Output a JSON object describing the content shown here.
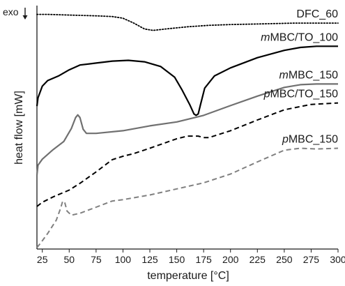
{
  "chart_data": {
    "type": "line",
    "title": "",
    "xlabel": "temperature [°C]",
    "ylabel": "heat flow [mW]",
    "direction_label": "exo",
    "direction_arrow": "down",
    "xlim": [
      20,
      300
    ],
    "xticks": [
      25,
      50,
      75,
      100,
      125,
      150,
      175,
      200,
      225,
      250,
      275,
      300
    ],
    "ylim": [
      0,
      100
    ],
    "y_axis_ticks": false,
    "grid": false,
    "legend": "labels next to curves",
    "series": [
      {
        "name": "DFC_60",
        "color": "#000000",
        "style": "dotted",
        "x": [
          20,
          30,
          50,
          75,
          90,
          100,
          110,
          120,
          128,
          140,
          160,
          180,
          200,
          230,
          260,
          300
        ],
        "y": [
          96.4,
          96.4,
          96.1,
          95.8,
          95.5,
          94.8,
          92.8,
          90.4,
          89.8,
          90.4,
          91.3,
          91.9,
          92.2,
          92.5,
          92.8,
          92.8
        ]
      },
      {
        "name": "mMBC/TO_100",
        "prefix": "m",
        "rest": "MBC/TO_100",
        "color": "#000000",
        "style": "solid",
        "x": [
          20,
          21,
          25,
          30,
          40,
          50,
          60,
          75,
          90,
          105,
          120,
          135,
          148,
          155,
          162,
          166,
          168,
          170,
          172,
          176,
          185,
          200,
          225,
          250,
          265,
          280,
          300
        ],
        "y": [
          58.7,
          62.1,
          66.9,
          69.2,
          71.1,
          73.6,
          75.6,
          76.4,
          77.2,
          77.5,
          76.9,
          75.0,
          70.6,
          65.3,
          59.4,
          55.5,
          54.9,
          55.5,
          59.1,
          66.1,
          71.1,
          74.4,
          78.6,
          81.6,
          82.8,
          83.3,
          83.3
        ]
      },
      {
        "name": "mMBC_150",
        "prefix": "m",
        "rest": "MBC_150",
        "color": "#707070",
        "style": "solid",
        "x": [
          20,
          21,
          25,
          35,
          45,
          52,
          56,
          58,
          60,
          63,
          66,
          75,
          100,
          125,
          150,
          175,
          200,
          225,
          250,
          265,
          280,
          300
        ],
        "y": [
          30.4,
          34.4,
          36.9,
          40.8,
          44.2,
          49.5,
          54.0,
          55.1,
          54.0,
          49.2,
          47.5,
          47.5,
          48.6,
          50.6,
          52.2,
          54.9,
          58.9,
          62.8,
          66.4,
          67.5,
          67.8,
          67.8
        ]
      },
      {
        "name": "pMBC/TO_150",
        "prefix": "p",
        "rest": "MBC/TO_150",
        "color": "#000000",
        "style": "dashed",
        "x": [
          20,
          25,
          35,
          50,
          60,
          75,
          90,
          100,
          110,
          125,
          150,
          160,
          170,
          175,
          180,
          200,
          225,
          250,
          275,
          300
        ],
        "y": [
          17.5,
          19.2,
          21.4,
          24.2,
          27.0,
          31.7,
          36.7,
          38.1,
          39.2,
          41.4,
          45.3,
          46.4,
          46.4,
          45.8,
          45.8,
          48.6,
          53.0,
          57.2,
          59.4,
          60.0
        ]
      },
      {
        "name": "pMBC_150",
        "prefix": "p",
        "rest": "MBC_150",
        "color": "#808080",
        "style": "dashed",
        "x": [
          20,
          24,
          30,
          38,
          42,
          44,
          46,
          48,
          52,
          60,
          75,
          90,
          100,
          125,
          150,
          175,
          200,
          225,
          250,
          265,
          280,
          300
        ],
        "y": [
          0.6,
          2.8,
          6.4,
          11.9,
          16.7,
          19.7,
          18.9,
          15.6,
          13.9,
          14.7,
          17.2,
          19.7,
          20.3,
          22.2,
          24.7,
          27.2,
          30.8,
          35.8,
          40.6,
          41.4,
          41.1,
          41.4
        ]
      }
    ]
  }
}
